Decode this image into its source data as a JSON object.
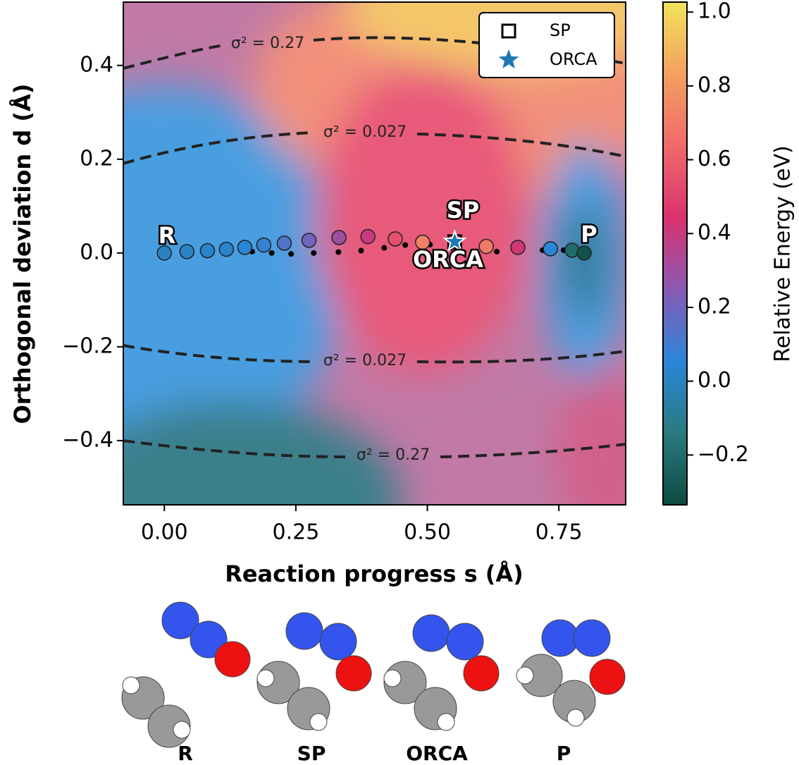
{
  "chart_data": {
    "type": "scatter",
    "xlabel": "Reaction progress s (Å)",
    "ylabel": "Orthogonal deviation d (Å)",
    "xlim": [
      -0.078,
      0.877
    ],
    "ylim": [
      -0.537,
      0.535
    ],
    "xticks": [
      {
        "value": 0,
        "label": "0.00"
      },
      {
        "value": 0.25,
        "label": "0.25"
      },
      {
        "value": 0.5,
        "label": "0.50"
      },
      {
        "value": 0.75,
        "label": "0.75"
      }
    ],
    "yticks": [
      {
        "value": 0.4,
        "label": "0.4"
      },
      {
        "value": 0.2,
        "label": "0.2"
      },
      {
        "value": 0,
        "label": "0.0"
      },
      {
        "value": -0.2,
        "label": "−0.2"
      },
      {
        "value": -0.4,
        "label": "−0.4"
      }
    ],
    "series": [
      {
        "marker": "circle",
        "x": [
          0,
          0.043,
          0.082,
          0.118,
          0.153,
          0.189,
          0.228,
          0.275,
          0.332,
          0.387,
          0.439,
          0.491,
          0.612,
          0.672,
          0.734,
          0.775,
          0.798
        ],
        "values": [
          0,
          0.003,
          0.005,
          0.008,
          0.012,
          0.017,
          0.021,
          0.027,
          0.033,
          0.035,
          0.03,
          0.023,
          0.014,
          0.012,
          0.009,
          0.006,
          0
        ],
        "energy": [
          0,
          0.01,
          0.02,
          0.03,
          0.05,
          0.08,
          0.13,
          0.2,
          0.3,
          0.4,
          0.55,
          0.72,
          0.7,
          0.42,
          0.05,
          -0.2,
          -0.3
        ]
      },
      {
        "marker": "dot",
        "color": "#000000",
        "x": [
          0.167,
          0.204,
          0.241,
          0.284,
          0.331,
          0.374,
          0.418,
          0.458,
          0.505,
          0.545,
          0.592,
          0.632,
          0.679,
          0.719,
          0.759
        ],
        "values": [
          0.003,
          0,
          -0.002,
          0,
          0.002,
          0.005,
          0.011,
          0.017,
          0.018,
          0.011,
          0.003,
          0.003,
          0.006,
          0.006,
          0.006
        ]
      },
      {
        "name": "SP",
        "marker": "square",
        "color": "#000000",
        "x": [
          0.552
        ],
        "values": [
          0.024
        ]
      },
      {
        "name": "ORCA",
        "marker": "star",
        "color": "#1f77b4",
        "x": [
          0.552
        ],
        "values": [
          0.024
        ]
      }
    ],
    "annotations": [
      "R",
      "SP",
      "ORCA",
      "P"
    ],
    "contour_labels": [
      "σ² = 0.27",
      "σ² = 0.027",
      "σ² = 0.027",
      "σ² = 0.27"
    ],
    "legend": "upper right",
    "colorbar": {
      "label": "Relative Energy (eV)",
      "lim": [
        -0.335,
        1.027
      ],
      "ticks": [
        {
          "value": 1,
          "label": "1.0"
        },
        {
          "value": 0.8,
          "label": "0.8"
        },
        {
          "value": 0.6,
          "label": "0.6"
        },
        {
          "value": 0.4,
          "label": "0.4"
        },
        {
          "value": 0.2,
          "label": "0.2"
        },
        {
          "value": 0,
          "label": "0.0"
        },
        {
          "value": -0.2,
          "label": "−0.2"
        }
      ],
      "colormap": [
        "#0d4a40",
        "#2a7a80",
        "#2a86d8",
        "#8a5ab4",
        "#d8326e",
        "#f06a6a",
        "#f3a060",
        "#f2e35c"
      ]
    },
    "molecules": [
      "R",
      "SP",
      "ORCA",
      "P"
    ]
  }
}
